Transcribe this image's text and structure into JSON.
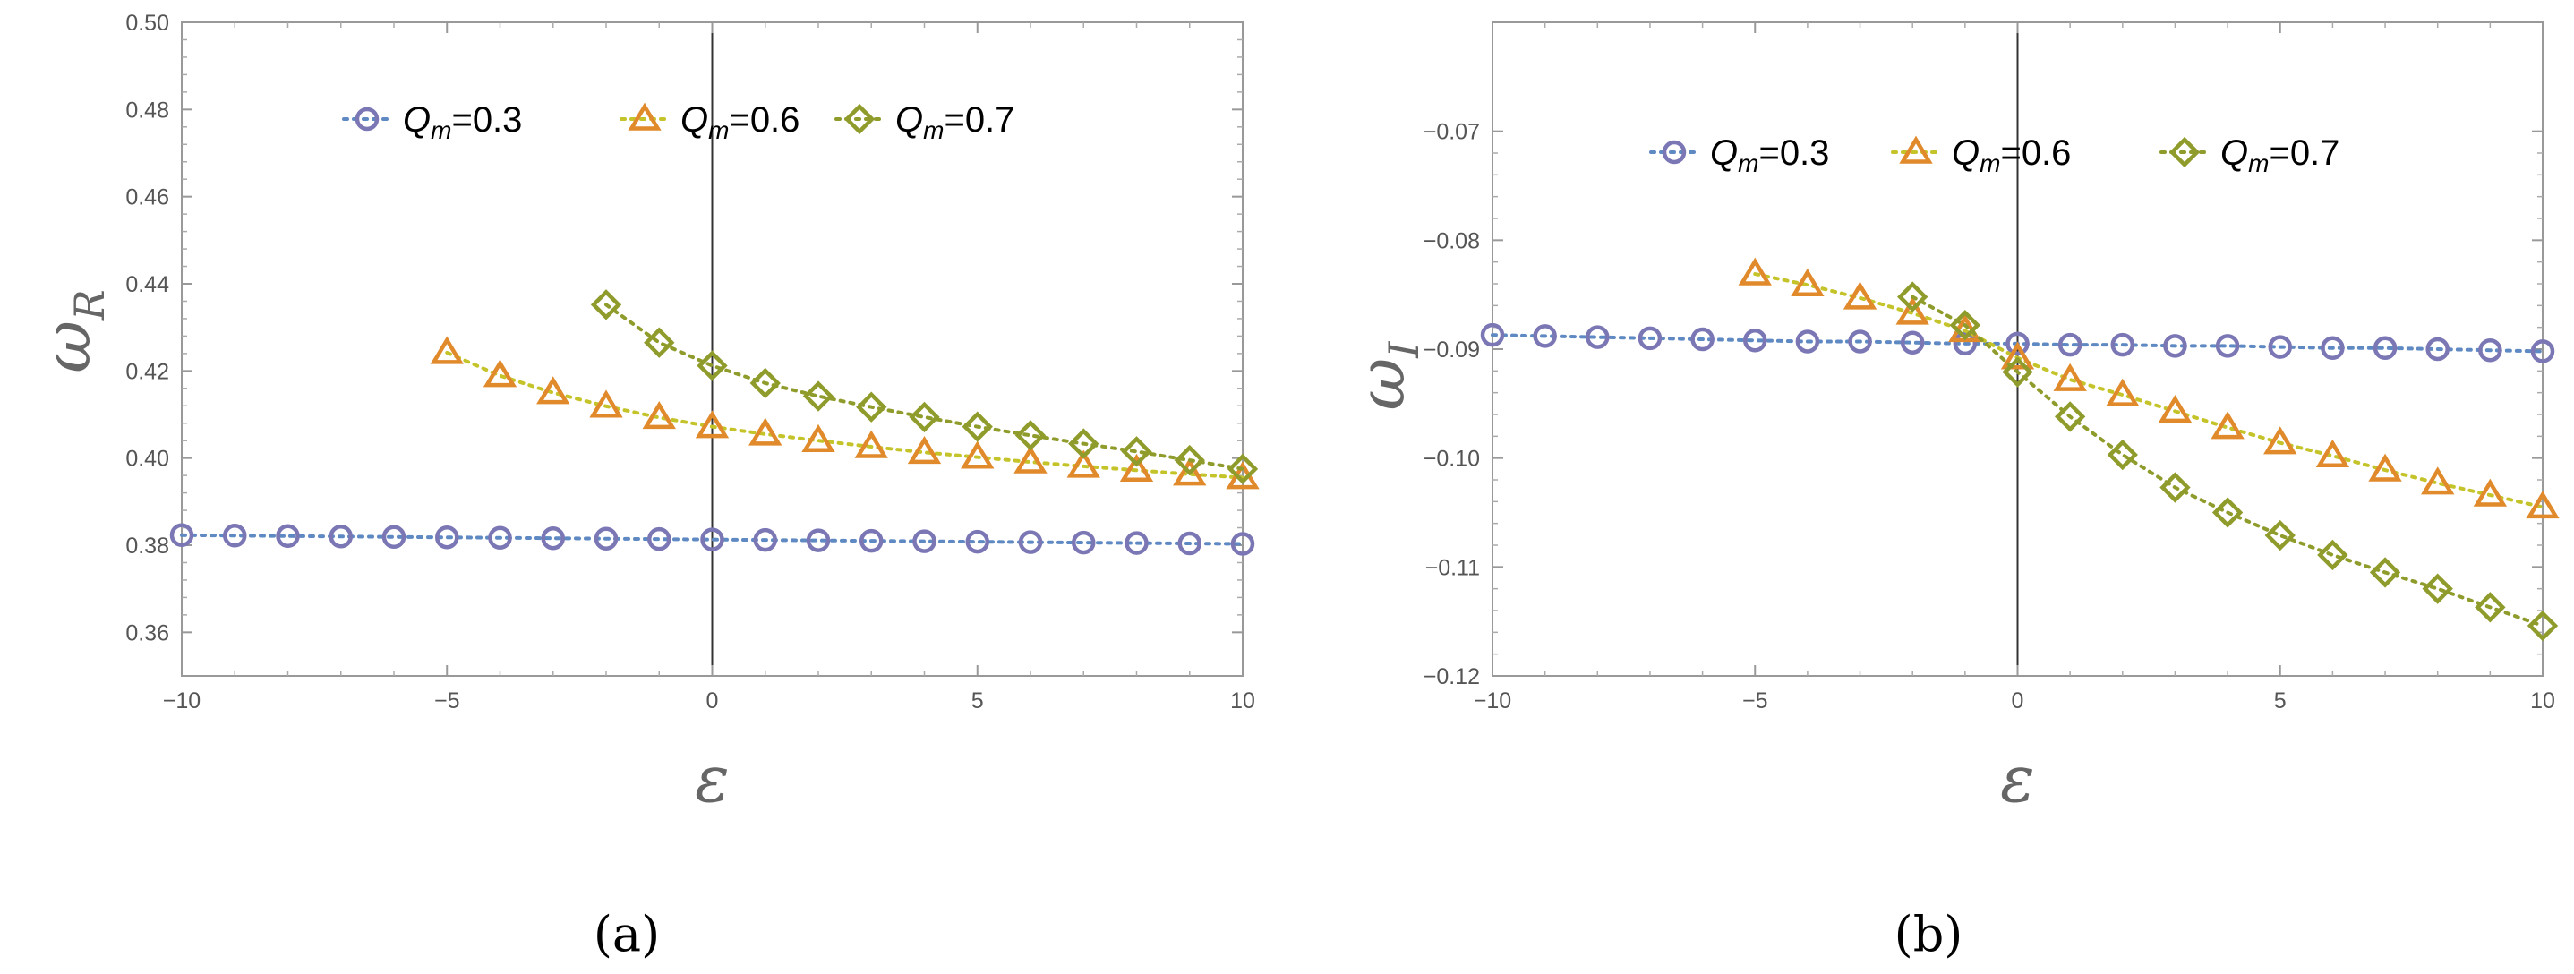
{
  "chart_data": [
    {
      "type": "scatter",
      "panel_label": "(a)",
      "xlabel": "ε",
      "ylabel_main": "ω",
      "ylabel_sub": "R",
      "xlim": [
        -10,
        10
      ],
      "ylim": [
        0.35,
        0.5
      ],
      "xticks": [
        -10,
        -5,
        0,
        5,
        10
      ],
      "xtick_labels": [
        "−10",
        "−5",
        "0",
        "5",
        "10"
      ],
      "yticks": [
        0.36,
        0.38,
        0.4,
        0.42,
        0.44,
        0.46,
        0.48,
        0.5
      ],
      "ytick_labels": [
        "0.36",
        "0.38",
        "0.40",
        "0.42",
        "0.44",
        "0.46",
        "0.48",
        "0.50"
      ],
      "legend_position": "top",
      "series": [
        {
          "name_main": "Q",
          "name_sub": "m",
          "name_rest": "=0.3",
          "color": "#7b77b5",
          "line_color": "#5f89c2",
          "marker": "circle",
          "x": [
            -10,
            -9,
            -8,
            -7,
            -6,
            -5,
            -4,
            -3,
            -2,
            -1,
            0,
            1,
            2,
            3,
            4,
            5,
            6,
            7,
            8,
            9,
            10
          ],
          "y": [
            0.3823,
            0.3822,
            0.3821,
            0.382,
            0.3819,
            0.3818,
            0.3817,
            0.3816,
            0.3815,
            0.3814,
            0.3813,
            0.3812,
            0.3811,
            0.381,
            0.3809,
            0.3808,
            0.3807,
            0.3806,
            0.3805,
            0.3804,
            0.3803
          ]
        },
        {
          "name_main": "Q",
          "name_sub": "m",
          "name_rest": "=0.6",
          "color": "#e08a2c",
          "line_color": "#c4c42a",
          "marker": "triangle",
          "x": [
            -5,
            -4,
            -3,
            -2,
            -1,
            0,
            1,
            2,
            3,
            4,
            5,
            6,
            7,
            8,
            9,
            10
          ],
          "y": [
            0.4242,
            0.4189,
            0.415,
            0.4119,
            0.4093,
            0.4072,
            0.4055,
            0.404,
            0.4026,
            0.4013,
            0.4002,
            0.3991,
            0.3981,
            0.3972,
            0.3963,
            0.3955
          ]
        },
        {
          "name_main": "Q",
          "name_sub": "m",
          "name_rest": "=0.7",
          "color": "#8f9c2c",
          "line_color": "#8f9c2c",
          "marker": "diamond",
          "x": [
            -2,
            -1,
            0,
            1,
            2,
            3,
            4,
            5,
            6,
            7,
            8,
            9,
            10
          ],
          "y": [
            0.4352,
            0.4265,
            0.4212,
            0.4172,
            0.4142,
            0.4117,
            0.4094,
            0.4072,
            0.4052,
            0.4033,
            0.4015,
            0.3995,
            0.3975
          ]
        }
      ]
    },
    {
      "type": "scatter",
      "panel_label": "(b)",
      "xlabel": "ε",
      "ylabel_main": "ω",
      "ylabel_sub": "I",
      "xlim": [
        -10,
        10
      ],
      "ylim": [
        -0.12,
        -0.06
      ],
      "xticks": [
        -10,
        -5,
        0,
        5,
        10
      ],
      "xtick_labels": [
        "−10",
        "−5",
        "0",
        "5",
        "10"
      ],
      "yticks": [
        -0.12,
        -0.11,
        -0.1,
        -0.09,
        -0.08,
        -0.07
      ],
      "ytick_labels": [
        "−0.12",
        "−0.11",
        "−0.10",
        "−0.09",
        "−0.08",
        "−0.07"
      ],
      "legend_position": "top",
      "series": [
        {
          "name_main": "Q",
          "name_sub": "m",
          "name_rest": "=0.3",
          "color": "#7b77b5",
          "line_color": "#5f89c2",
          "marker": "circle",
          "x": [
            -10,
            -9,
            -8,
            -7,
            -6,
            -5,
            -4,
            -3,
            -2,
            -1,
            0,
            1,
            2,
            3,
            4,
            5,
            6,
            7,
            8,
            9,
            10
          ],
          "y": [
            -0.0887,
            -0.0888,
            -0.0889,
            -0.089,
            -0.0891,
            -0.0892,
            -0.0893,
            -0.0893,
            -0.0894,
            -0.0895,
            -0.0895,
            -0.0896,
            -0.0896,
            -0.0897,
            -0.0897,
            -0.0898,
            -0.0899,
            -0.0899,
            -0.09,
            -0.0901,
            -0.0902
          ]
        },
        {
          "name_main": "Q",
          "name_sub": "m",
          "name_rest": "=0.6",
          "color": "#e08a2c",
          "line_color": "#c4c42a",
          "marker": "triangle",
          "x": [
            -5,
            -4,
            -3,
            -2,
            -1,
            0,
            1,
            2,
            3,
            4,
            5,
            6,
            7,
            8,
            9,
            10
          ],
          "y": [
            -0.0831,
            -0.0841,
            -0.0853,
            -0.0867,
            -0.0883,
            -0.0908,
            -0.0928,
            -0.0942,
            -0.0957,
            -0.0972,
            -0.0986,
            -0.0998,
            -0.1011,
            -0.1023,
            -0.1034,
            -0.1045
          ]
        },
        {
          "name_main": "Q",
          "name_sub": "m",
          "name_rest": "=0.7",
          "color": "#8f9c2c",
          "line_color": "#8f9c2c",
          "marker": "diamond",
          "x": [
            -2,
            -1,
            0,
            1,
            2,
            3,
            4,
            5,
            6,
            7,
            8,
            9,
            10
          ],
          "y": [
            -0.0852,
            -0.0878,
            -0.0921,
            -0.0962,
            -0.0997,
            -0.1027,
            -0.105,
            -0.1071,
            -0.1089,
            -0.1105,
            -0.112,
            -0.1137,
            -0.1154
          ]
        }
      ]
    }
  ]
}
